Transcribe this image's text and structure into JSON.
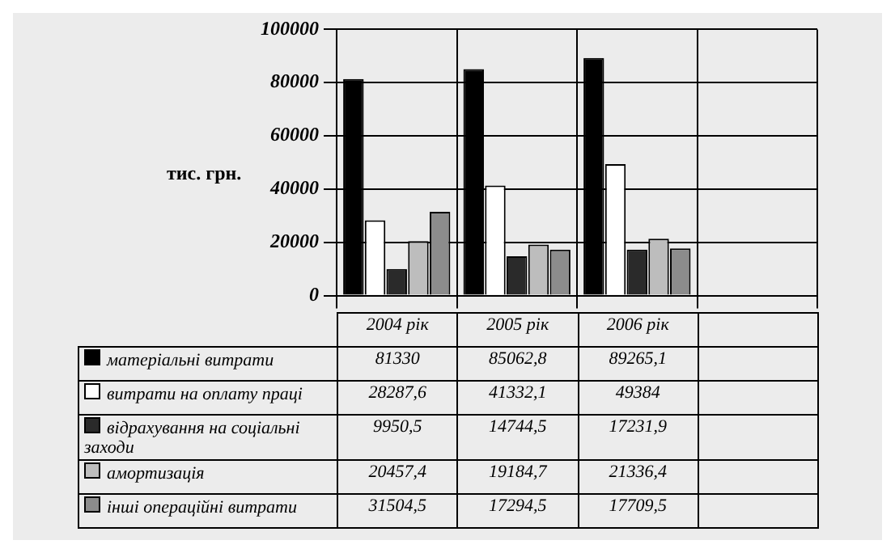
{
  "chart_data": {
    "type": "bar",
    "ylabel": "тис. грн.",
    "categories": [
      "2004 рік",
      "2005 рік",
      "2006 рік",
      null
    ],
    "series": [
      {
        "name": "матеріальні витрати",
        "color": "#000000",
        "values": [
          81330,
          85062.8,
          89265.1,
          null
        ],
        "value_labels": [
          "81330",
          "85062,8",
          "89265,1",
          null
        ]
      },
      {
        "name": "витрати на оплату праці",
        "color": "#ffffff",
        "values": [
          28287.6,
          41332.1,
          49384,
          null
        ],
        "value_labels": [
          "28287,6",
          "41332,1",
          "49384",
          null
        ]
      },
      {
        "name": "відрахування на соціальні заходи",
        "color": "#2a2a2a",
        "values": [
          9950.5,
          14744.5,
          17231.9,
          null
        ],
        "value_labels": [
          "9950,5",
          "14744,5",
          "17231,9",
          null
        ]
      },
      {
        "name": "амортизація",
        "color": "#bdbdbd",
        "values": [
          20457.4,
          19184.7,
          21336.4,
          null
        ],
        "value_labels": [
          "20457,4",
          "19184,7",
          "21336,4",
          null
        ]
      },
      {
        "name": "інші операційні витрати",
        "color": "#8c8c8c",
        "values": [
          31504.5,
          17294.5,
          17709.5,
          null
        ],
        "value_labels": [
          "31504,5",
          "17294,5",
          "17709,5",
          null
        ]
      }
    ],
    "ylim": [
      0,
      100000
    ],
    "yticks": [
      0,
      20000,
      40000,
      60000,
      80000,
      100000
    ],
    "grid": true,
    "legend": "bottom left"
  }
}
